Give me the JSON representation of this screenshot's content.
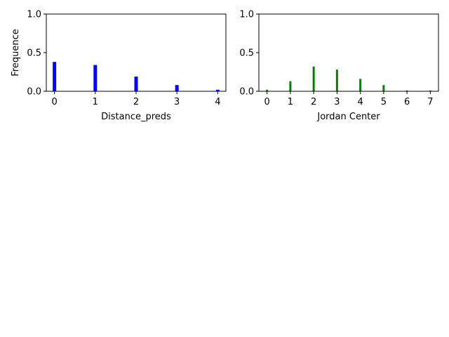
{
  "chart_data": [
    {
      "type": "bar",
      "xlabel": "Distance_preds",
      "ylabel": "Frequence",
      "ylim": [
        0,
        1.0
      ],
      "xlim": [
        -0.2,
        4.2
      ],
      "yticks": [
        0.0,
        0.5,
        1.0
      ],
      "ytick_labels": [
        "0.0",
        "0.5",
        "1.0"
      ],
      "xticks": [
        0,
        1,
        2,
        3,
        4
      ],
      "xtick_labels": [
        "0",
        "1",
        "2",
        "3",
        "4"
      ],
      "x": [
        0,
        1,
        2,
        3,
        4
      ],
      "values": [
        0.38,
        0.34,
        0.19,
        0.08,
        0.02
      ],
      "color": "#0000ff",
      "grid": false,
      "legend": "none"
    },
    {
      "type": "bar",
      "xlabel": "Jordan Center",
      "ylabel": "",
      "ylim": [
        0,
        1.0
      ],
      "xlim": [
        -0.35,
        7.35
      ],
      "yticks": [
        0.0,
        0.5,
        1.0
      ],
      "ytick_labels": [
        "0.0",
        "0.5",
        "1.0"
      ],
      "xticks": [
        0,
        1,
        2,
        3,
        4,
        5,
        6,
        7
      ],
      "xtick_labels": [
        "0",
        "1",
        "2",
        "3",
        "4",
        "5",
        "6",
        "7"
      ],
      "x": [
        0,
        1,
        2,
        3,
        4,
        5,
        6,
        7
      ],
      "values": [
        0.02,
        0.13,
        0.32,
        0.28,
        0.16,
        0.08,
        0.01,
        0.01
      ],
      "color": "#008000",
      "grid": false,
      "legend": "none"
    }
  ]
}
